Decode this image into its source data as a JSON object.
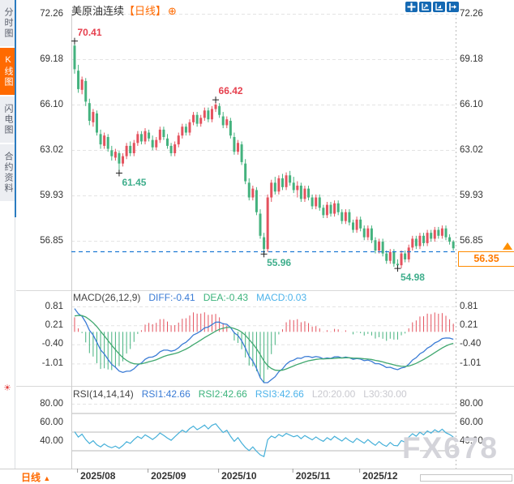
{
  "app": {
    "title": "美原油连续",
    "period_tag": "【日线】",
    "add_icon": "⊕",
    "toolbar_icons": [
      "pan-icon",
      "auto-scale-icon",
      "fixed-scale-icon",
      "collapse-panel-icon"
    ]
  },
  "sidebar": {
    "tabs": [
      {
        "label": "分时图",
        "active": false
      },
      {
        "label": "K线图",
        "active": true
      },
      {
        "label": "闪电图",
        "active": false
      },
      {
        "label": "合约资料",
        "active": false
      }
    ],
    "indicator_settings_icon": "☀"
  },
  "price_axis": {
    "labels": [
      "72.26",
      "69.18",
      "66.10",
      "63.02",
      "59.93",
      "56.85"
    ]
  },
  "current_price": {
    "value": "56.35"
  },
  "macd_panel": {
    "title": "MACD(26,12,9)",
    "readouts": [
      {
        "text": "DIFF:-0.41",
        "color": "#3a7bd5"
      },
      {
        "text": "DEA:-0.43",
        "color": "#3cb37c"
      },
      {
        "text": "MACD:0.03",
        "color": "#4db3ea"
      }
    ],
    "axis_labels": [
      "0.81",
      "0.21",
      "-0.40",
      "-1.01"
    ]
  },
  "rsi_panel": {
    "title": "RSI(14,14,14)",
    "readouts": [
      {
        "text": "RSI1:42.66",
        "color": "#3a7bd5"
      },
      {
        "text": "RSI2:42.66",
        "color": "#3cb37c"
      },
      {
        "text": "RSI3:42.66",
        "color": "#4db3ea"
      },
      {
        "text": "L20:20.00",
        "color": "#c9c9cf"
      },
      {
        "text": "L30:30.00",
        "color": "#c9c9cf"
      }
    ],
    "axis_labels": [
      "80.00",
      "60.00",
      "40.00"
    ],
    "level_lines": [
      70,
      50,
      30
    ]
  },
  "footer": {
    "period_label": "日线",
    "arrow": "▲"
  },
  "watermark": "FX678",
  "colors": {
    "up": "#e4525e",
    "down": "#44b27e",
    "accent_orange": "#ff6a00",
    "toolbar_blue": "#1569b3",
    "diff_line": "#3a7bd5",
    "dea_line": "#41a86f",
    "rsi_line": "#45b0d9",
    "hi_label": "#e6404e",
    "lo_label": "#3fae8c",
    "grid": "#e3e3e3",
    "price_line_blue": "#1f7ad4"
  },
  "chart_data": {
    "type": "candlestick",
    "symbol": "美原油连续",
    "interval": "日线",
    "x_axis": {
      "labels": [
        "2025/08",
        "2025/09",
        "2025/10",
        "2025/11",
        "2025/12"
      ],
      "tick_indices": [
        1,
        20,
        39,
        59,
        77
      ]
    },
    "y_axis": {
      "labels": [
        72.26,
        69.18,
        66.1,
        63.02,
        59.93,
        56.85
      ]
    },
    "annotations": [
      {
        "label": "70.41",
        "price": 70.41,
        "idx": 0,
        "type": "high"
      },
      {
        "label": "66.42",
        "price": 66.42,
        "idx": 38,
        "type": "high"
      },
      {
        "label": "61.45",
        "price": 61.45,
        "idx": 12,
        "type": "low"
      },
      {
        "label": "55.96",
        "price": 55.96,
        "idx": 51,
        "type": "low"
      },
      {
        "label": "54.98",
        "price": 54.98,
        "idx": 87,
        "type": "low"
      }
    ],
    "last_close": 56.35,
    "ohlc": [
      [
        70.1,
        70.41,
        68.2,
        68.5
      ],
      [
        68.4,
        68.8,
        66.9,
        67.15
      ],
      [
        67.1,
        68.0,
        66.8,
        67.8
      ],
      [
        67.7,
        67.9,
        66.0,
        66.3
      ],
      [
        66.2,
        66.5,
        64.7,
        65.0
      ],
      [
        64.9,
        65.8,
        64.6,
        65.6
      ],
      [
        65.5,
        65.7,
        64.0,
        64.2
      ],
      [
        64.1,
        64.4,
        63.1,
        63.4
      ],
      [
        63.3,
        64.2,
        63.1,
        64.0
      ],
      [
        63.9,
        64.1,
        62.9,
        63.1
      ],
      [
        63.0,
        63.3,
        62.3,
        62.6
      ],
      [
        62.5,
        63.1,
        62.3,
        62.9
      ],
      [
        62.8,
        62.95,
        61.45,
        62.1
      ],
      [
        62.1,
        62.8,
        61.9,
        62.6
      ],
      [
        62.6,
        63.5,
        62.4,
        63.3
      ],
      [
        63.3,
        63.6,
        62.6,
        62.8
      ],
      [
        62.8,
        63.7,
        62.6,
        63.5
      ],
      [
        63.5,
        64.3,
        63.3,
        64.1
      ],
      [
        64.1,
        64.3,
        63.4,
        63.6
      ],
      [
        63.6,
        64.5,
        63.4,
        64.3
      ],
      [
        64.2,
        64.4,
        63.6,
        63.8
      ],
      [
        63.7,
        64.0,
        63.0,
        63.2
      ],
      [
        63.2,
        63.9,
        63.0,
        63.7
      ],
      [
        63.7,
        64.6,
        63.5,
        64.4
      ],
      [
        64.4,
        64.6,
        63.7,
        63.9
      ],
      [
        63.8,
        64.1,
        63.1,
        63.3
      ],
      [
        63.3,
        63.5,
        62.6,
        62.8
      ],
      [
        62.8,
        63.6,
        62.6,
        63.4
      ],
      [
        63.4,
        64.2,
        63.2,
        64.0
      ],
      [
        64.0,
        64.8,
        63.8,
        64.6
      ],
      [
        64.6,
        64.8,
        64.0,
        64.2
      ],
      [
        64.2,
        65.1,
        64.0,
        64.9
      ],
      [
        64.9,
        65.6,
        64.7,
        65.4
      ],
      [
        65.4,
        65.6,
        64.6,
        64.8
      ],
      [
        64.8,
        65.4,
        64.6,
        65.2
      ],
      [
        65.2,
        65.9,
        65.0,
        65.7
      ],
      [
        65.7,
        65.9,
        64.9,
        65.1
      ],
      [
        65.1,
        66.0,
        64.9,
        65.8
      ],
      [
        65.8,
        66.42,
        65.6,
        66.1
      ],
      [
        66.0,
        66.2,
        65.2,
        65.4
      ],
      [
        65.3,
        65.6,
        64.5,
        64.7
      ],
      [
        64.7,
        65.3,
        64.5,
        65.1
      ],
      [
        65.0,
        65.2,
        63.8,
        64.0
      ],
      [
        63.9,
        64.2,
        62.7,
        62.9
      ],
      [
        62.9,
        63.7,
        62.7,
        63.5
      ],
      [
        63.4,
        63.6,
        62.0,
        62.2
      ],
      [
        62.1,
        62.4,
        60.7,
        60.9
      ],
      [
        60.8,
        61.1,
        59.6,
        59.8
      ],
      [
        59.8,
        60.6,
        59.6,
        60.4
      ],
      [
        60.3,
        60.5,
        58.6,
        58.8
      ],
      [
        58.7,
        59.0,
        57.0,
        57.2
      ],
      [
        57.1,
        57.4,
        55.96,
        56.3
      ],
      [
        56.3,
        60.0,
        56.1,
        59.8
      ],
      [
        59.8,
        61.0,
        59.5,
        60.8
      ],
      [
        60.8,
        61.2,
        60.0,
        60.2
      ],
      [
        60.2,
        61.3,
        60.0,
        61.1
      ],
      [
        61.1,
        61.4,
        60.3,
        60.5
      ],
      [
        60.5,
        61.5,
        60.3,
        61.3
      ],
      [
        61.3,
        61.6,
        60.6,
        60.8
      ],
      [
        60.8,
        61.2,
        60.1,
        60.3
      ],
      [
        60.3,
        60.9,
        59.8,
        60.6
      ],
      [
        60.6,
        60.8,
        59.5,
        59.7
      ],
      [
        59.7,
        60.6,
        59.5,
        60.4
      ],
      [
        60.4,
        60.6,
        59.6,
        59.8
      ],
      [
        59.8,
        60.0,
        59.0,
        59.2
      ],
      [
        59.2,
        60.0,
        59.0,
        59.8
      ],
      [
        59.8,
        60.0,
        58.9,
        59.1
      ],
      [
        59.1,
        59.3,
        58.4,
        58.6
      ],
      [
        58.6,
        59.5,
        58.4,
        59.3
      ],
      [
        59.3,
        59.5,
        58.5,
        58.7
      ],
      [
        58.7,
        59.6,
        58.5,
        59.4
      ],
      [
        59.4,
        59.6,
        58.6,
        58.8
      ],
      [
        58.8,
        59.0,
        58.0,
        58.2
      ],
      [
        58.2,
        59.0,
        58.0,
        58.8
      ],
      [
        58.8,
        59.0,
        57.9,
        58.1
      ],
      [
        58.1,
        58.3,
        57.4,
        57.6
      ],
      [
        57.6,
        58.5,
        57.4,
        58.3
      ],
      [
        58.3,
        58.5,
        57.5,
        57.7
      ],
      [
        57.7,
        57.9,
        56.9,
        57.1
      ],
      [
        57.1,
        57.9,
        56.9,
        57.7
      ],
      [
        57.7,
        57.9,
        56.7,
        56.9
      ],
      [
        56.9,
        57.1,
        56.0,
        56.2
      ],
      [
        56.2,
        57.0,
        56.0,
        56.8
      ],
      [
        56.8,
        57.0,
        55.8,
        56.0
      ],
      [
        56.0,
        56.2,
        55.3,
        55.5
      ],
      [
        55.5,
        56.3,
        55.3,
        56.1
      ],
      [
        56.1,
        56.3,
        55.1,
        55.3
      ],
      [
        55.3,
        55.6,
        54.98,
        55.2
      ],
      [
        55.2,
        56.2,
        55.0,
        56.0
      ],
      [
        56.0,
        56.2,
        55.4,
        55.6
      ],
      [
        55.6,
        56.6,
        55.4,
        56.4
      ],
      [
        56.4,
        57.2,
        56.2,
        57.0
      ],
      [
        57.0,
        57.2,
        56.3,
        56.5
      ],
      [
        56.5,
        57.4,
        56.3,
        57.2
      ],
      [
        57.2,
        57.4,
        56.5,
        56.7
      ],
      [
        56.7,
        57.6,
        56.5,
        57.4
      ],
      [
        57.4,
        57.6,
        56.8,
        57.0
      ],
      [
        57.0,
        57.8,
        56.8,
        57.6
      ],
      [
        57.6,
        57.8,
        57.0,
        57.2
      ],
      [
        57.2,
        57.9,
        57.0,
        57.7
      ],
      [
        57.7,
        57.9,
        56.9,
        57.1
      ],
      [
        57.1,
        57.3,
        56.6,
        56.8
      ],
      [
        56.8,
        56.9,
        56.2,
        56.35
      ]
    ]
  }
}
